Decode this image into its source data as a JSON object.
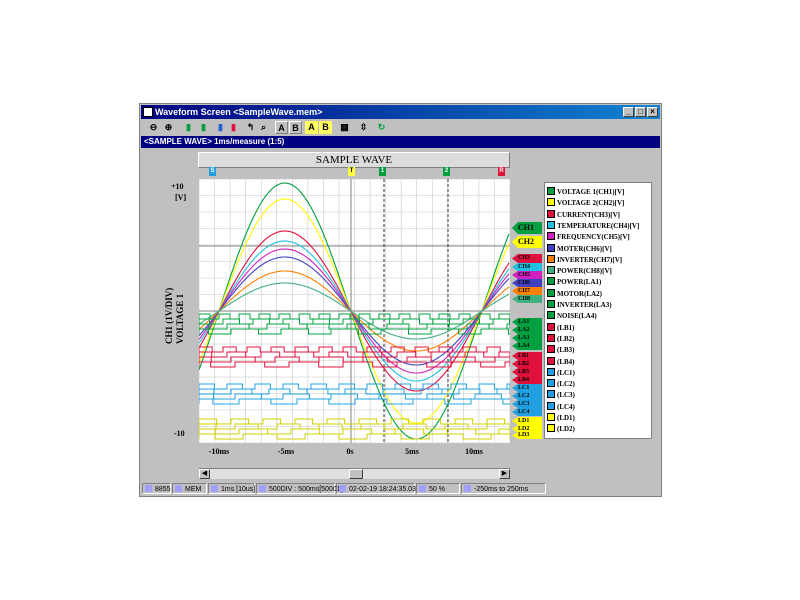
{
  "window": {
    "title": "Waveform Screen <SampleWave.mem>"
  },
  "subheader": "<SAMPLE WAVE> 1ms/measure (1:5)",
  "panel": {
    "title": "SAMPLE WAVE"
  },
  "axis": {
    "y_top": "+10",
    "y_unit": "[V]",
    "y_bottom": "-10",
    "y_label_1": "CH1 (1V/DIV)",
    "y_label_2": "VOLTAGE 1",
    "x_ticks": [
      "-10ms",
      "-5ms",
      "0s",
      "5ms",
      "10ms"
    ]
  },
  "toolbar_icons": [
    "zoom-out-icon",
    "zoom-in-icon",
    "channel-green-icon",
    "channel-green2-icon",
    "channel-blue-icon",
    "channel-red-icon",
    "cursor-icon",
    "search-icon",
    "text-a-icon",
    "text-b-icon",
    "yellow-a-icon",
    "yellow-b-icon",
    "grid-icon",
    "split-icon",
    "refresh-icon"
  ],
  "tags": [
    {
      "label": "CH1",
      "color": "#00a040"
    },
    {
      "label": "CH2",
      "color": "#ffff00"
    },
    {
      "label": "CH3",
      "color": "#e0103c"
    },
    {
      "label": "CH4",
      "color": "#20c0e0"
    },
    {
      "label": "CH5",
      "color": "#d020c0"
    },
    {
      "label": "CH6",
      "color": "#4040c0"
    },
    {
      "label": "CH7",
      "color": "#ff8000"
    },
    {
      "label": "CH8",
      "color": "#40b080"
    },
    {
      "label": "LA1",
      "color": "#00a040"
    },
    {
      "label": "LA2",
      "color": "#00a040"
    },
    {
      "label": "LA3",
      "color": "#00a040"
    },
    {
      "label": "LA4",
      "color": "#00a040"
    },
    {
      "label": "LB1",
      "color": "#e0103c"
    },
    {
      "label": "LB2",
      "color": "#e0103c"
    },
    {
      "label": "LB3",
      "color": "#e0103c"
    },
    {
      "label": "LB4",
      "color": "#e0103c"
    },
    {
      "label": "LC1",
      "color": "#20a0e0"
    },
    {
      "label": "LC2",
      "color": "#20a0e0"
    },
    {
      "label": "LC3",
      "color": "#20a0e0"
    },
    {
      "label": "LC4",
      "color": "#20a0e0"
    },
    {
      "label": "LD1",
      "color": "#ffff00"
    },
    {
      "label": "LD2",
      "color": "#ffff00"
    },
    {
      "label": "LD3",
      "color": "#ffff00"
    }
  ],
  "legend": [
    {
      "label": "VOLTAGE 1(CH1)[V]",
      "color": "#00a040"
    },
    {
      "label": "VOLTAGE 2(CH2)[V]",
      "color": "#ffff00"
    },
    {
      "label": "CURRENT(CH3)[V]",
      "color": "#e0103c"
    },
    {
      "label": "TEMPERATURE(CH4)[V]",
      "color": "#20c0e0"
    },
    {
      "label": "FREQUENCY(CH5)[V]",
      "color": "#d020c0"
    },
    {
      "label": "MOTER(CH6)[V]",
      "color": "#4040c0"
    },
    {
      "label": "INVERTER(CH7)[V]",
      "color": "#ff8000"
    },
    {
      "label": "POWER(CH8)[V]",
      "color": "#40b080"
    },
    {
      "label": "POWER(LA1)",
      "color": "#00a040"
    },
    {
      "label": "MOTOR(LA2)",
      "color": "#00a040"
    },
    {
      "label": "INVERTER(LA3)",
      "color": "#00a040"
    },
    {
      "label": "NOISE(LA4)",
      "color": "#00a040"
    },
    {
      "label": "(LB1)",
      "color": "#e0103c"
    },
    {
      "label": "(LB2)",
      "color": "#e0103c"
    },
    {
      "label": "(LB3)",
      "color": "#e0103c"
    },
    {
      "label": "(LB4)",
      "color": "#e0103c"
    },
    {
      "label": "(LC1)",
      "color": "#20a0e0"
    },
    {
      "label": "(LC2)",
      "color": "#20a0e0"
    },
    {
      "label": "(LC3)",
      "color": "#20a0e0"
    },
    {
      "label": "(LC4)",
      "color": "#20a0e0"
    },
    {
      "label": "(LD1)",
      "color": "#ffff00"
    },
    {
      "label": "(LD2)",
      "color": "#ffff00"
    }
  ],
  "markers": [
    "S",
    "T",
    "1",
    "2",
    "R"
  ],
  "status": [
    {
      "icon": "device-icon",
      "text": "8855"
    },
    {
      "icon": "memory-icon",
      "text": "MEM"
    },
    {
      "icon": "pen-icon",
      "text": "1ms [10us]"
    },
    {
      "icon": "clock-icon",
      "text": "500DIV : 500ms[50001]"
    },
    {
      "icon": "trigger-icon",
      "text": "02-02-19 18:24:35.03"
    },
    {
      "icon": "trigger-pos-icon",
      "text": "50 %"
    },
    {
      "icon": "range-icon",
      "text": "-250ms to 250ms"
    }
  ]
}
